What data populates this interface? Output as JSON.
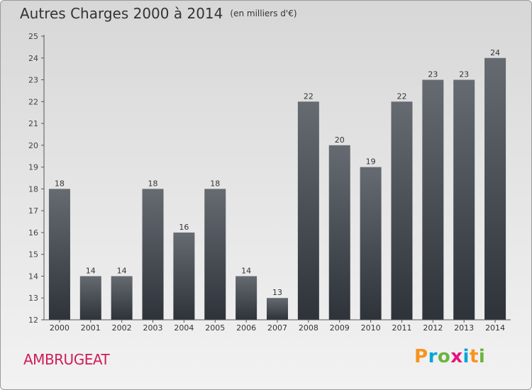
{
  "chart_data": {
    "type": "bar",
    "title": "Autres Charges 2000 à 2014",
    "subtitle": "(en milliers d'€)",
    "categories": [
      "2000",
      "2001",
      "2002",
      "2003",
      "2004",
      "2005",
      "2006",
      "2007",
      "2008",
      "2009",
      "2010",
      "2011",
      "2012",
      "2013",
      "2014"
    ],
    "values": [
      18,
      14,
      14,
      18,
      16,
      18,
      14,
      13,
      22,
      20,
      19,
      22,
      23,
      23,
      24
    ],
    "ylim": [
      12,
      25
    ],
    "yticks": [
      12,
      13,
      14,
      15,
      16,
      17,
      18,
      19,
      20,
      21,
      22,
      23,
      24,
      25
    ],
    "xlabel": "",
    "ylabel": "",
    "grid": false,
    "bar_color": "#3a3f46"
  },
  "footer": {
    "commune": "AMBRUGEAT",
    "logo_letters": [
      "P",
      "r",
      "o",
      "x",
      "i",
      "t",
      "i"
    ],
    "logo_colors": [
      "#f7941d",
      "#00a6d6",
      "#6cb33f",
      "#e4167e",
      "#00a6d6",
      "#f7941d",
      "#6cb33f"
    ]
  }
}
